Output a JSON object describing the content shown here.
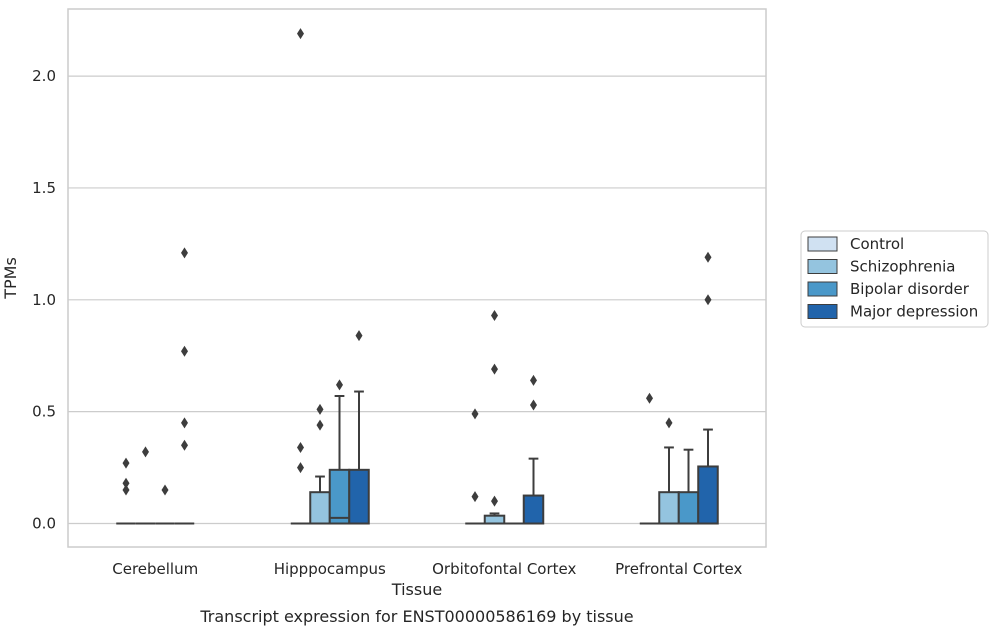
{
  "chart_data": {
    "type": "box",
    "caption": "Transcript expression for ENST00000586169 by tissue",
    "xlabel": "Tissue",
    "ylabel": "TPMs",
    "ylim": [
      -0.105,
      2.3
    ],
    "yticks": [
      0.0,
      0.5,
      1.0,
      1.5,
      2.0
    ],
    "ytick_labels": [
      "0.0",
      "0.5",
      "1.0",
      "1.5",
      "2.0"
    ],
    "grid": "horizontal",
    "legend_position": "right",
    "categories": [
      "Cerebellum",
      "Hipppocampus",
      "Orbitofontal Cortex",
      "Prefrontal Cortex"
    ],
    "series": [
      {
        "name": "Control",
        "color": "#d0e1f2",
        "boxes": [
          {
            "q1": 0.0,
            "median": 0.0,
            "q3": 0.0,
            "whisker_low": 0.0,
            "whisker_high": 0.0,
            "outliers": [
              0.15,
              0.18,
              0.27
            ]
          },
          {
            "q1": 0.0,
            "median": 0.0,
            "q3": 0.0,
            "whisker_low": 0.0,
            "whisker_high": 0.0,
            "outliers": [
              0.25,
              0.34,
              2.19
            ]
          },
          {
            "q1": 0.0,
            "median": 0.0,
            "q3": 0.0,
            "whisker_low": 0.0,
            "whisker_high": 0.0,
            "outliers": [
              0.12,
              0.49
            ]
          },
          {
            "q1": 0.0,
            "median": 0.0,
            "q3": 0.0,
            "whisker_low": 0.0,
            "whisker_high": 0.0,
            "outliers": [
              0.56
            ]
          }
        ]
      },
      {
        "name": "Schizophrenia",
        "color": "#94c4df",
        "boxes": [
          {
            "q1": 0.0,
            "median": 0.0,
            "q3": 0.0,
            "whisker_low": 0.0,
            "whisker_high": 0.0,
            "outliers": [
              0.32
            ]
          },
          {
            "q1": 0.0,
            "median": 0.0,
            "q3": 0.14,
            "whisker_low": 0.0,
            "whisker_high": 0.21,
            "outliers": [
              0.44,
              0.51
            ]
          },
          {
            "q1": 0.0,
            "median": 0.0,
            "q3": 0.035,
            "whisker_low": 0.0,
            "whisker_high": 0.045,
            "outliers": [
              0.1,
              0.69,
              0.93
            ]
          },
          {
            "q1": 0.0,
            "median": 0.0,
            "q3": 0.14,
            "whisker_low": 0.0,
            "whisker_high": 0.34,
            "outliers": [
              0.45
            ]
          }
        ]
      },
      {
        "name": "Bipolar disorder",
        "color": "#4a98c9",
        "boxes": [
          {
            "q1": 0.0,
            "median": 0.0,
            "q3": 0.0,
            "whisker_low": 0.0,
            "whisker_high": 0.0,
            "outliers": [
              0.15
            ]
          },
          {
            "q1": 0.0,
            "median": 0.025,
            "q3": 0.24,
            "whisker_low": 0.0,
            "whisker_high": 0.57,
            "outliers": [
              0.62
            ]
          },
          {
            "q1": 0.0,
            "median": 0.0,
            "q3": 0.0,
            "whisker_low": 0.0,
            "whisker_high": 0.0,
            "outliers": []
          },
          {
            "q1": 0.0,
            "median": 0.0,
            "q3": 0.14,
            "whisker_low": 0.0,
            "whisker_high": 0.33,
            "outliers": []
          }
        ]
      },
      {
        "name": "Major depression",
        "color": "#2164ab",
        "boxes": [
          {
            "q1": 0.0,
            "median": 0.0,
            "q3": 0.0,
            "whisker_low": 0.0,
            "whisker_high": 0.0,
            "outliers": [
              0.35,
              0.45,
              0.77,
              1.21
            ]
          },
          {
            "q1": 0.0,
            "median": 0.0,
            "q3": 0.24,
            "whisker_low": 0.0,
            "whisker_high": 0.59,
            "outliers": [
              0.84
            ]
          },
          {
            "q1": 0.0,
            "median": 0.0,
            "q3": 0.125,
            "whisker_low": 0.0,
            "whisker_high": 0.29,
            "outliers": [
              0.53,
              0.64
            ]
          },
          {
            "q1": 0.0,
            "median": 0.0,
            "q3": 0.255,
            "whisker_low": 0.0,
            "whisker_high": 0.42,
            "outliers": [
              1.0,
              1.19
            ]
          }
        ]
      }
    ]
  }
}
